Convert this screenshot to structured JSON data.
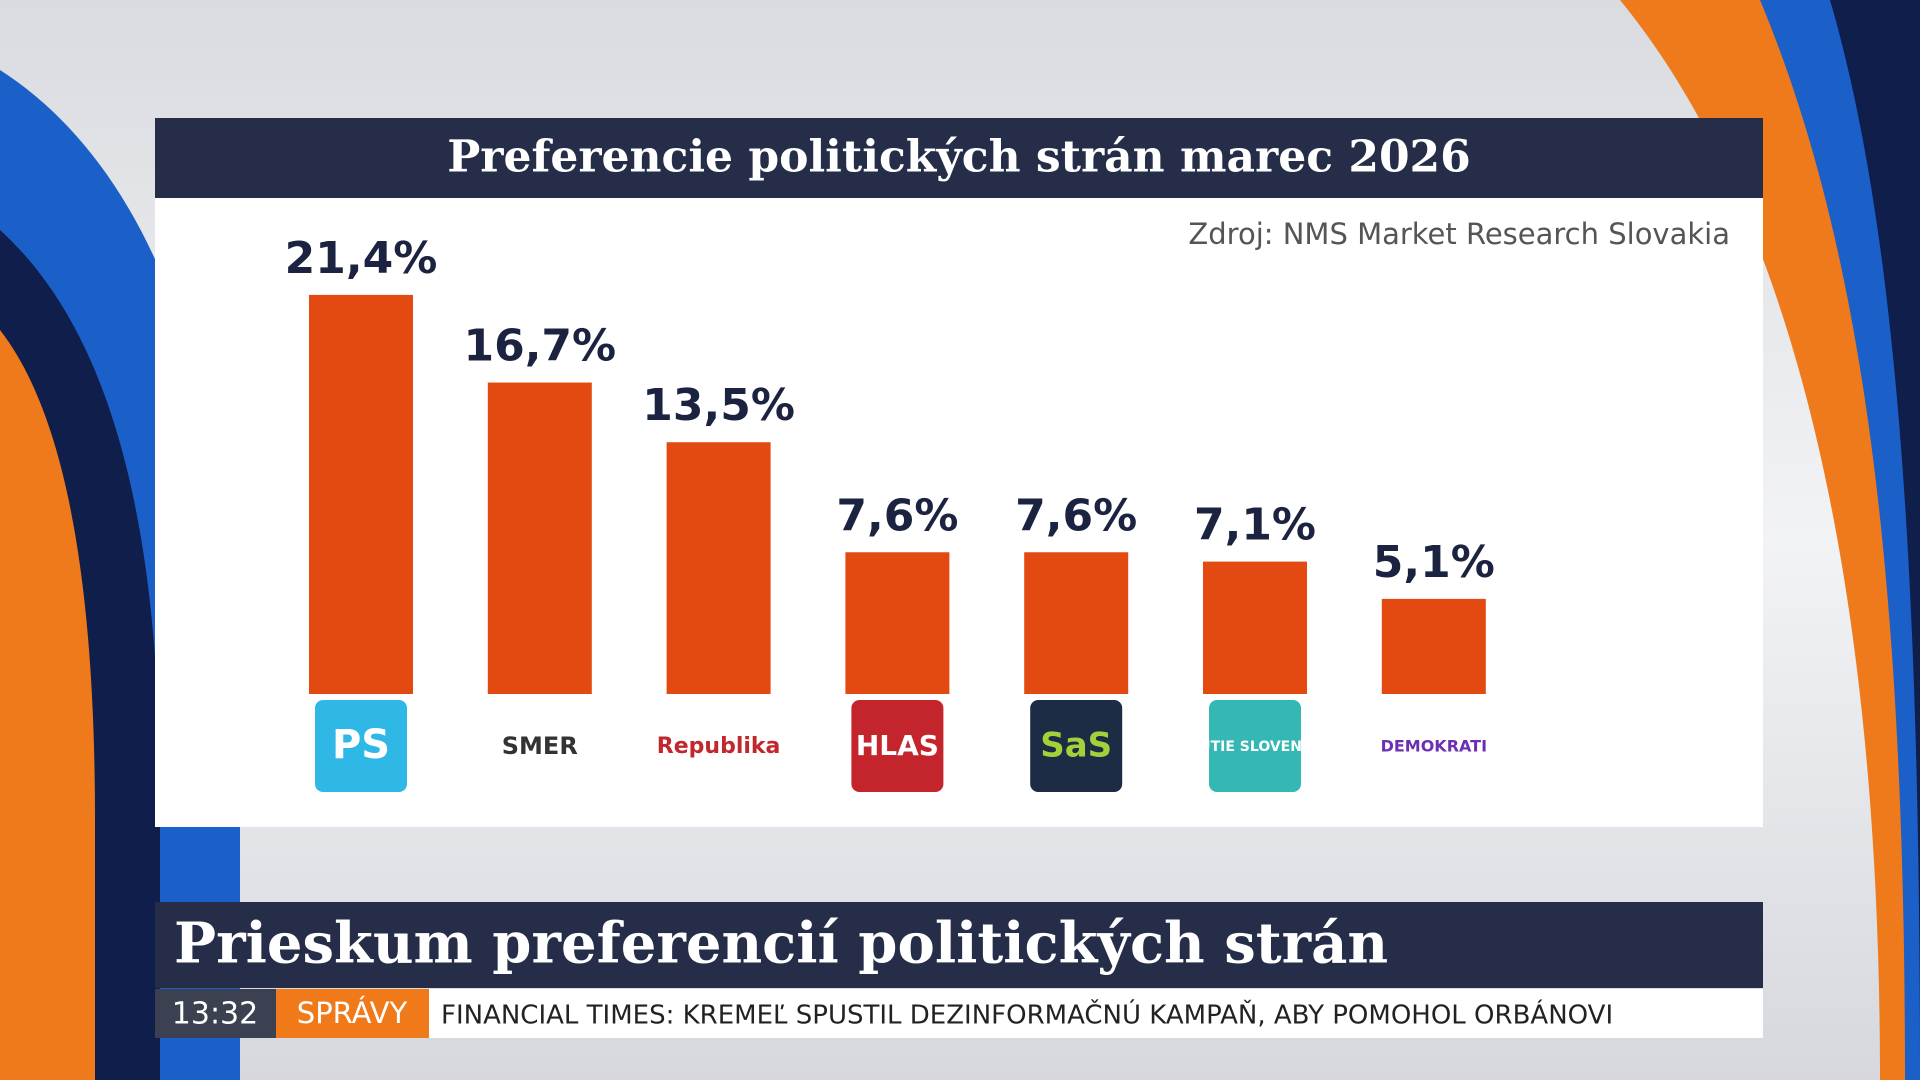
{
  "chart_data": {
    "type": "bar",
    "title": "Preferencie politických strán marec 2026",
    "source": "Zdroj: NMS Market Research Slovakia",
    "categories": [
      "PS",
      "SMER",
      "Republika",
      "HLAS",
      "SaS",
      "HNUTIE SLOVENSKO",
      "DEMOKRATI"
    ],
    "values": [
      21.4,
      16.7,
      13.5,
      7.6,
      7.6,
      7.1,
      5.1
    ],
    "value_labels": [
      "21,4%",
      "16,7%",
      "13,5%",
      "7,6%",
      "7,6%",
      "7,1%",
      "5,1%"
    ],
    "color": "#e24a12"
  },
  "lower_third": {
    "headline": "Prieskum preferencií politických strán",
    "time": "13:32",
    "section": "SPRÁVY",
    "ticker": "FINANCIAL TIMES: KREMEĽ SPUSTIL DEZINFORMAČNÚ KAMPAŇ, ABY POMOHOL ORBÁNOVI"
  }
}
